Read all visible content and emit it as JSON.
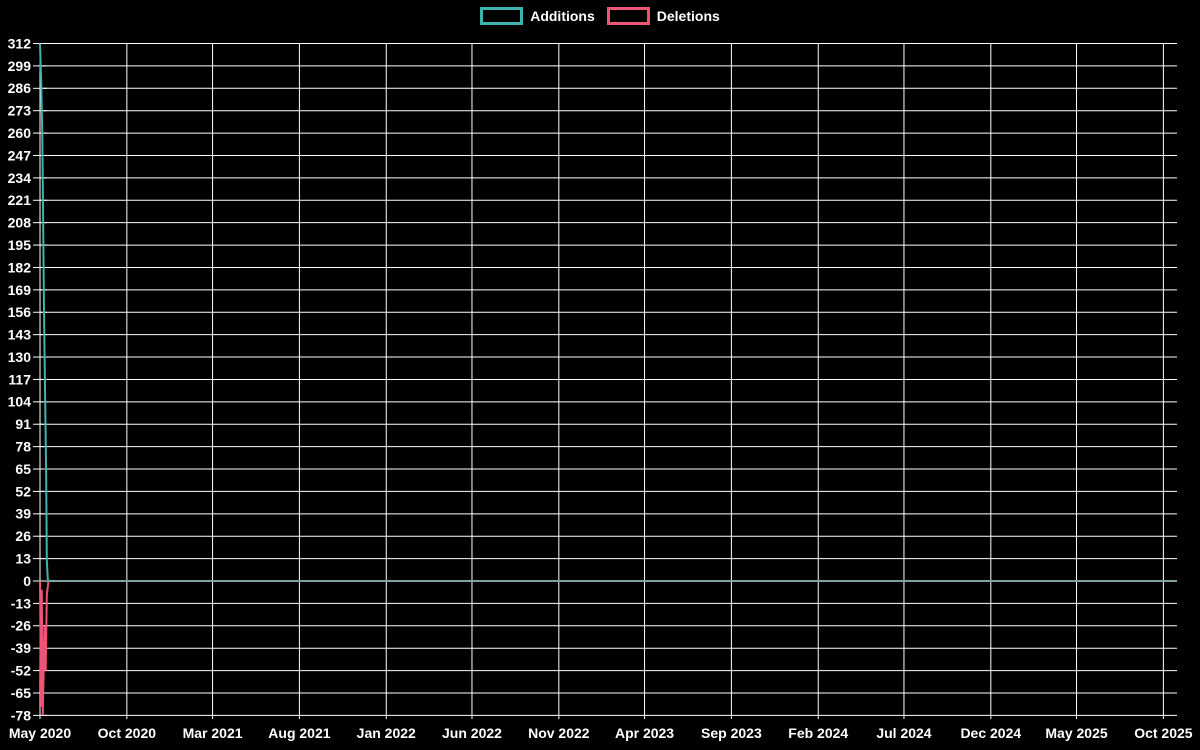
{
  "chart_data": {
    "type": "line",
    "title": "",
    "background": "#000000",
    "grid": {
      "show": true,
      "color": "#ffffff"
    },
    "text_color": "#ffffff",
    "legend_position": "top-center",
    "x_axis": {
      "type": "time",
      "start": "2020-05-01",
      "end": "2025-10-25",
      "tick_dates": [
        "2020-05-01",
        "2020-10-01",
        "2021-03-01",
        "2021-08-01",
        "2022-01-01",
        "2022-06-01",
        "2022-11-01",
        "2023-04-01",
        "2023-09-01",
        "2024-02-01",
        "2024-07-01",
        "2024-12-01",
        "2025-05-01",
        "2025-10-01"
      ],
      "tick_labels": [
        "May 2020",
        "Oct 2020",
        "Mar 2021",
        "Aug 2021",
        "Jan 2022",
        "Jun 2022",
        "Nov 2022",
        "Apr 2023",
        "Sep 2023",
        "Feb 2024",
        "Jul 2024",
        "Dec 2024",
        "May 2025",
        "Oct 2025"
      ]
    },
    "y_axis": {
      "min": -78,
      "max": 312,
      "tick_step": 13,
      "tick_labels": [
        312,
        299,
        286,
        273,
        260,
        247,
        234,
        221,
        208,
        195,
        182,
        169,
        156,
        143,
        130,
        117,
        104,
        91,
        78,
        65,
        52,
        39,
        26,
        13,
        0,
        -13,
        -26,
        -39,
        -52,
        -65,
        -78
      ]
    },
    "zero_line_color": "#7fa2a0",
    "series": [
      {
        "name": "Additions",
        "color": "#40b3b0",
        "points": [
          [
            "2020-05-01",
            312
          ],
          [
            "2020-05-03",
            292
          ],
          [
            "2020-05-05",
            259
          ],
          [
            "2020-05-06",
            230
          ],
          [
            "2020-05-08",
            157
          ],
          [
            "2020-05-12",
            60
          ],
          [
            "2020-05-13",
            12
          ],
          [
            "2020-05-15",
            0
          ],
          [
            "2025-10-25",
            0
          ]
        ]
      },
      {
        "name": "Deletions",
        "color": "#ef5477",
        "points": [
          [
            "2020-05-01",
            0
          ],
          [
            "2020-05-03",
            -73
          ],
          [
            "2020-05-04",
            -5
          ],
          [
            "2020-05-06",
            -78
          ],
          [
            "2020-05-09",
            -26
          ],
          [
            "2020-05-11",
            -52
          ],
          [
            "2020-05-13",
            -8
          ],
          [
            "2020-05-16",
            0
          ],
          [
            "2025-10-25",
            0
          ]
        ]
      }
    ]
  }
}
